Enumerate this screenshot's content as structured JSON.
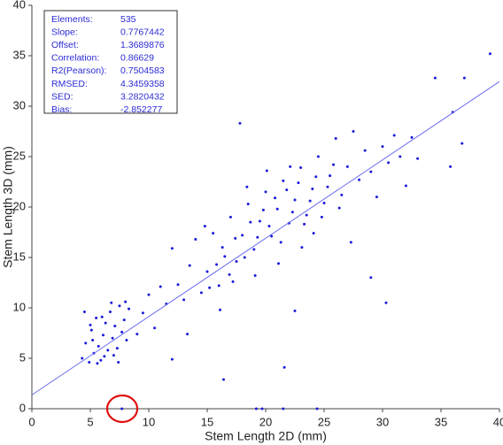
{
  "chart_data": {
    "type": "scatter",
    "x_label": "Stem Length 2D (mm)",
    "y_label": "Stem Length 3D (mm)",
    "xlim": [
      0,
      40
    ],
    "ylim": [
      0,
      40
    ],
    "xticks": [
      0,
      5,
      10,
      15,
      20,
      25,
      30,
      35,
      40
    ],
    "yticks": [
      0,
      5,
      10,
      15,
      20,
      25,
      30,
      35,
      40
    ],
    "grid": false,
    "color": "#1a1adb",
    "fit_line_color": "#6b6bf0",
    "stats": [
      {
        "label": "Elements:",
        "value": 535
      },
      {
        "label": "Slope:",
        "value": 0.7767442
      },
      {
        "label": "Offset:",
        "value": 1.3689876
      },
      {
        "label": "Correlation:",
        "value": 0.86629
      },
      {
        "label": "R2(Pearson):",
        "value": 0.7504583
      },
      {
        "label": "RMSED:",
        "value": 4.3459358
      },
      {
        "label": "SED:",
        "value": 3.2820432
      },
      {
        "label": "Bias:",
        "value": -2.852277
      }
    ],
    "x": [
      4.3,
      4.6,
      4.9,
      5.1,
      5.3,
      5.5,
      5.7,
      5.9,
      6.1,
      6.3,
      6.5,
      6.7,
      6.9,
      7.1,
      7.3,
      7.5,
      7.7,
      7.9,
      8.1,
      8.3,
      4.5,
      5.0,
      5.6,
      6.2,
      6.8,
      7.4,
      8.0,
      5.2,
      6.0,
      7.0,
      9.0,
      9.5,
      10.0,
      10.5,
      11.0,
      11.5,
      12.0,
      12.5,
      13.0,
      13.5,
      14.0,
      14.5,
      15.0,
      15.5,
      16.0,
      16.5,
      17.0,
      17.5,
      18.0,
      18.5,
      19.0,
      19.5,
      20.0,
      20.5,
      21.0,
      21.5,
      22.0,
      22.5,
      23.0,
      23.5,
      24.0,
      24.5,
      25.0,
      25.5,
      26.0,
      26.5,
      27.0,
      27.5,
      28.0,
      28.5,
      29.0,
      29.5,
      30.0,
      30.5,
      31.0,
      31.5,
      32.0,
      32.5,
      33.0,
      15.2,
      15.8,
      16.3,
      16.9,
      17.4,
      18.2,
      18.7,
      19.3,
      19.8,
      20.3,
      20.8,
      21.3,
      21.8,
      22.3,
      22.8,
      23.3,
      23.8,
      24.3,
      24.8,
      25.3,
      25.8,
      26.3,
      14.8,
      16.1,
      17.2,
      18.4,
      19.1,
      20.1,
      21.1,
      22.1,
      23.1,
      24.1,
      17.8,
      39.2,
      34.5,
      37.0,
      16.4,
      21.6,
      29.0,
      30.3,
      27.3,
      22.5,
      35.8,
      36.8,
      36.0,
      12.0,
      13.3,
      7.7,
      19.2,
      19.7,
      21.5,
      24.4
    ],
    "y": [
      5.0,
      6.5,
      4.6,
      7.8,
      5.5,
      9.0,
      6.2,
      4.8,
      7.3,
      8.5,
      5.8,
      9.6,
      7.0,
      8.2,
      6.0,
      10.2,
      7.6,
      8.8,
      6.8,
      9.9,
      9.6,
      8.3,
      4.5,
      5.2,
      10.5,
      4.6,
      10.6,
      6.8,
      9.1,
      5.3,
      7.4,
      9.5,
      11.3,
      8.0,
      12.1,
      10.4,
      15.9,
      12.3,
      10.8,
      14.2,
      16.8,
      11.5,
      13.6,
      17.4,
      12.2,
      15.1,
      19.0,
      14.6,
      17.2,
      20.3,
      15.8,
      18.6,
      21.5,
      17.1,
      19.8,
      22.6,
      18.4,
      20.7,
      23.9,
      19.2,
      21.8,
      25.0,
      20.4,
      23.1,
      26.8,
      21.2,
      24.0,
      27.5,
      22.7,
      25.6,
      23.5,
      21.0,
      26.0,
      24.4,
      27.1,
      25.0,
      22.1,
      26.9,
      24.8,
      12.0,
      14.3,
      16.0,
      13.3,
      16.9,
      15.0,
      18.5,
      17.0,
      19.7,
      18.1,
      20.9,
      16.5,
      21.7,
      19.5,
      22.4,
      18.3,
      20.6,
      23.0,
      19.0,
      22.0,
      24.2,
      19.9,
      18.1,
      9.8,
      12.6,
      22.0,
      13.2,
      23.6,
      14.4,
      24.0,
      16.0,
      17.4,
      28.3,
      35.2,
      32.8,
      32.8,
      2.9,
      4.1,
      13.0,
      10.5,
      16.5,
      9.7,
      24.0,
      26.3,
      29.4,
      4.9,
      7.4,
      0,
      0,
      0,
      0,
      0
    ]
  }
}
